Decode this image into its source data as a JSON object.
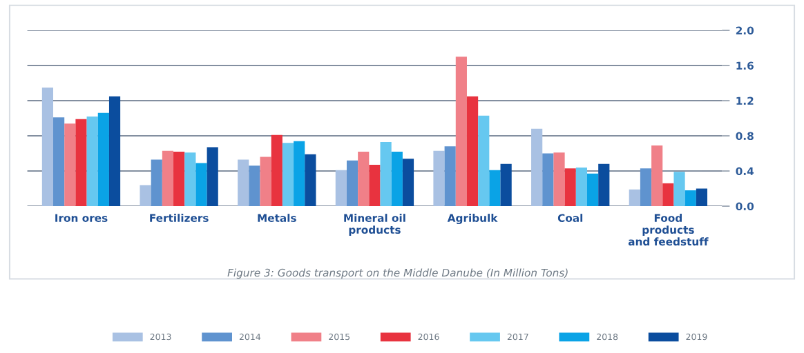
{
  "chart_data": {
    "type": "bar",
    "categories": [
      "Iron ores",
      "Fertilizers",
      "Metals",
      "Mineral oil\nproducts",
      "Agribulk",
      "Coal",
      "Food\nproducts\nand feedstuff"
    ],
    "series": [
      {
        "name": "2013",
        "color": "#a9c1e3",
        "values": [
          1.35,
          0.24,
          0.53,
          0.41,
          0.63,
          0.88,
          0.19
        ]
      },
      {
        "name": "2014",
        "color": "#5f93cf",
        "values": [
          1.01,
          0.53,
          0.46,
          0.52,
          0.68,
          0.6,
          0.43
        ]
      },
      {
        "name": "2015",
        "color": "#f08088",
        "values": [
          0.94,
          0.63,
          0.56,
          0.62,
          1.7,
          0.61,
          0.69
        ]
      },
      {
        "name": "2016",
        "color": "#e8333f",
        "values": [
          0.99,
          0.62,
          0.81,
          0.47,
          1.25,
          0.43,
          0.26
        ]
      },
      {
        "name": "2017",
        "color": "#66c8f0",
        "values": [
          1.02,
          0.61,
          0.72,
          0.73,
          1.03,
          0.44,
          0.39
        ]
      },
      {
        "name": "2018",
        "color": "#0aa3e6",
        "values": [
          1.06,
          0.49,
          0.74,
          0.62,
          0.41,
          0.37,
          0.18
        ]
      },
      {
        "name": "2019",
        "color": "#0b4d9e",
        "values": [
          1.25,
          0.67,
          0.59,
          0.54,
          0.48,
          0.48,
          0.2
        ]
      }
    ],
    "ylim": [
      0,
      2.0
    ],
    "yticks": [
      {
        "value": 0,
        "label": "0.0"
      },
      {
        "value": 0.4,
        "label": "0.4"
      },
      {
        "value": 0.8,
        "label": "0.8"
      },
      {
        "value": 1.2,
        "label": "1.2"
      },
      {
        "value": 1.6,
        "label": "1.6"
      },
      {
        "value": 2.0,
        "label": "2.0"
      }
    ],
    "grid": "y",
    "legend": "bottom",
    "annotations": [
      "Figure 3: Goods transport on the Middle Danube (In Million Tons)"
    ]
  }
}
